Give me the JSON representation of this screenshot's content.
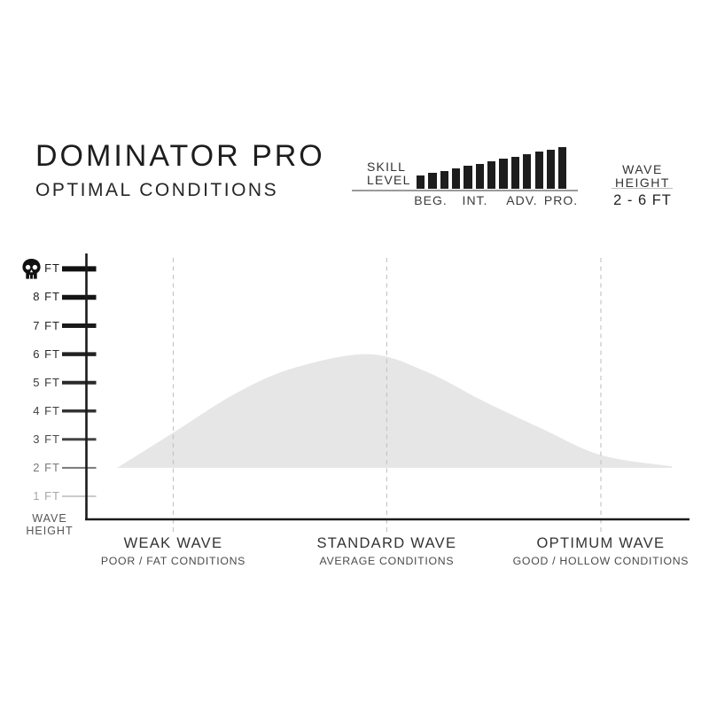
{
  "header": {
    "title": "DOMINATOR PRO",
    "subtitle": "OPTIMAL CONDITIONS"
  },
  "skill_panel": {
    "label": [
      "SKILL",
      "LEVEL"
    ]
  },
  "wave_panel": {
    "label": [
      "WAVE",
      "HEIGHT"
    ],
    "range": "2 - 6 FT"
  },
  "icons": {
    "skull": "skull-danger-icon"
  },
  "chart_data": [
    {
      "type": "area",
      "name": "optimal-wave-conditions",
      "y_axis": {
        "caption": "WAVE HEIGHT",
        "caption_lines": [
          "WAVE",
          "HEIGHT"
        ],
        "tick_labels": [
          "+ FT",
          "8 FT",
          "7 FT",
          "6 FT",
          "5 FT",
          "4 FT",
          "3 FT",
          "2 FT",
          "1 FT"
        ],
        "skull_on_first_tick": true,
        "unit": "FT"
      },
      "x_categories": [
        {
          "label": "WEAK WAVE",
          "sublabel": "POOR / FAT CONDITIONS",
          "pos": 0.144
        },
        {
          "label": "STANDARD WAVE",
          "sublabel": "AVERAGE CONDITIONS",
          "pos": 0.498
        },
        {
          "label": "OPTIMUM WAVE",
          "sublabel": "GOOD / HOLLOW CONDITIONS",
          "pos": 0.853
        }
      ],
      "series": [
        {
          "name": "suitable-wave-height-envelope",
          "base_ft": 2,
          "peak_ft": 6,
          "points": [
            {
              "x": 0.051,
              "ft": 2.0
            },
            {
              "x": 0.145,
              "ft": 3.25
            },
            {
              "x": 0.246,
              "ft": 4.6
            },
            {
              "x": 0.342,
              "ft": 5.5
            },
            {
              "x": 0.467,
              "ft": 6.0
            },
            {
              "x": 0.562,
              "ft": 5.4
            },
            {
              "x": 0.658,
              "ft": 4.35
            },
            {
              "x": 0.753,
              "ft": 3.4
            },
            {
              "x": 0.853,
              "ft": 2.45
            },
            {
              "x": 0.971,
              "ft": 2.05
            }
          ]
        }
      ],
      "range_label": "2 - 6 FT",
      "grid": "dashed-vertical-at-categories",
      "legend": "none"
    },
    {
      "type": "bar",
      "name": "skill-level-scale",
      "categories": [
        "BEG.",
        "INT.",
        "ADV.",
        "PRO."
      ],
      "values": [
        1,
        2,
        3,
        4,
        5,
        6,
        7,
        8,
        9,
        10,
        11,
        12,
        13
      ],
      "note": "ascending bars from beginner to pro"
    }
  ],
  "colors": {
    "ink": "#1b1b1b",
    "bar_fill": "#1d1d1d",
    "area_fill": "#e6e6e6",
    "dashed_line": "#c6c6c6",
    "divider_gray": "#9a9a9a",
    "background": "#ffffff"
  }
}
